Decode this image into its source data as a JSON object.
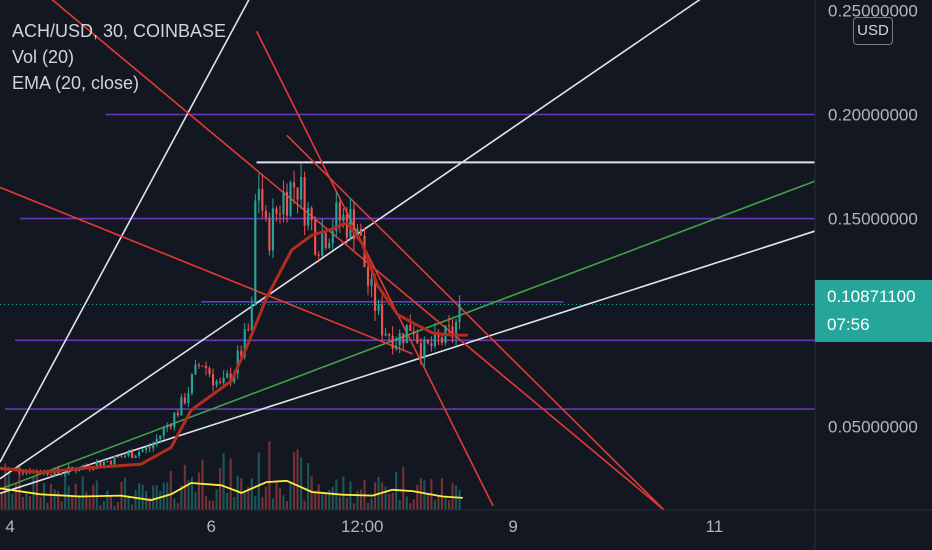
{
  "legend": {
    "symbol": "ACH/USD, 30, COINBASE",
    "volume": "Vol (20)",
    "ema": "EMA (20, close)"
  },
  "currency": "USD",
  "last_price": {
    "value": "0.10871100",
    "countdown": "07:56"
  },
  "colors": {
    "background": "#131722",
    "candle_up": "#26a69a",
    "candle_down": "#ef5350",
    "ema": "#b22d1e",
    "volume_ma": "#ffeb3b",
    "trendline_red": "#e53935",
    "trendline_white": "#e0e3eb",
    "trendline_green": "#43a047",
    "horizontal_purple": "#673ab7",
    "price_tag": "#26a69a"
  },
  "chart_data": {
    "type": "candlestick",
    "y_axis": {
      "range": [
        0.01,
        0.255
      ],
      "ticks": [
        {
          "value": 0.25,
          "label": "0.25000000"
        },
        {
          "value": 0.2,
          "label": "0.20000000"
        },
        {
          "value": 0.15,
          "label": "0.15000000"
        },
        {
          "value": 0.05,
          "label": "0.05000000"
        }
      ]
    },
    "x_axis": {
      "range": [
        3.9,
        12.0
      ],
      "ticks": [
        {
          "value": 4.0,
          "label": "4"
        },
        {
          "value": 6.0,
          "label": "6"
        },
        {
          "value": 7.5,
          "label": "12:00"
        },
        {
          "value": 9.0,
          "label": "9"
        },
        {
          "value": 11.0,
          "label": "11"
        }
      ]
    },
    "price_path": [
      [
        3.9,
        0.03
      ],
      [
        4.5,
        0.028
      ],
      [
        5.0,
        0.034
      ],
      [
        5.4,
        0.04
      ],
      [
        5.7,
        0.06
      ],
      [
        5.9,
        0.082
      ],
      [
        6.1,
        0.068
      ],
      [
        6.25,
        0.08
      ],
      [
        6.4,
        0.1
      ],
      [
        6.45,
        0.175
      ],
      [
        6.55,
        0.14
      ],
      [
        6.7,
        0.16
      ],
      [
        6.85,
        0.168
      ],
      [
        7.05,
        0.14
      ],
      [
        7.25,
        0.15
      ],
      [
        7.45,
        0.148
      ],
      [
        7.55,
        0.12
      ],
      [
        7.7,
        0.098
      ],
      [
        7.85,
        0.092
      ],
      [
        8.0,
        0.1
      ],
      [
        8.1,
        0.086
      ],
      [
        8.3,
        0.092
      ],
      [
        8.4,
        0.095
      ],
      [
        8.5,
        0.1087
      ]
    ],
    "ema_path": [
      [
        3.9,
        0.03
      ],
      [
        4.3,
        0.028
      ],
      [
        4.7,
        0.03
      ],
      [
        5.3,
        0.032
      ],
      [
        5.6,
        0.04
      ],
      [
        5.8,
        0.058
      ],
      [
        6.0,
        0.065
      ],
      [
        6.2,
        0.072
      ],
      [
        6.35,
        0.088
      ],
      [
        6.55,
        0.112
      ],
      [
        6.8,
        0.135
      ],
      [
        7.0,
        0.142
      ],
      [
        7.2,
        0.145
      ],
      [
        7.35,
        0.148
      ],
      [
        7.5,
        0.138
      ],
      [
        7.65,
        0.118
      ],
      [
        7.85,
        0.104
      ],
      [
        8.0,
        0.1
      ],
      [
        8.2,
        0.095
      ],
      [
        8.4,
        0.094
      ],
      [
        8.55,
        0.094
      ]
    ],
    "volume_ma_path": [
      [
        3.9,
        0.48
      ],
      [
        4.3,
        0.35
      ],
      [
        4.7,
        0.3
      ],
      [
        5.1,
        0.32
      ],
      [
        5.4,
        0.22
      ],
      [
        5.6,
        0.35
      ],
      [
        5.8,
        0.6
      ],
      [
        6.1,
        0.55
      ],
      [
        6.3,
        0.38
      ],
      [
        6.55,
        0.62
      ],
      [
        6.75,
        0.65
      ],
      [
        7.0,
        0.4
      ],
      [
        7.3,
        0.34
      ],
      [
        7.6,
        0.32
      ],
      [
        7.8,
        0.45
      ],
      [
        8.0,
        0.42
      ],
      [
        8.3,
        0.3
      ],
      [
        8.5,
        0.27
      ]
    ],
    "last_price": 0.108711,
    "horizontal_lines": [
      {
        "price": 0.2,
        "x_from": 4.95,
        "color": "purple"
      },
      {
        "price": 0.177,
        "x_from": 6.45,
        "color": "white"
      },
      {
        "price": 0.15,
        "x_from": 4.1,
        "color": "purple"
      },
      {
        "price": 0.11,
        "x_from": 5.9,
        "x_to": 9.5,
        "color": "purple"
      },
      {
        "price": 0.0915,
        "x_from": 4.05,
        "color": "purple"
      },
      {
        "price": 0.0585,
        "x_from": 3.95,
        "color": "purple"
      }
    ],
    "trend_lines": [
      {
        "from": [
          3.9,
          0.033
        ],
        "to": [
          6.45,
          0.262
        ],
        "color": "white"
      },
      {
        "from": [
          3.9,
          0.025
        ],
        "to": [
          11.0,
          0.26
        ],
        "color": "white"
      },
      {
        "from": [
          3.9,
          0.018
        ],
        "to": [
          12.0,
          0.144
        ],
        "color": "white"
      },
      {
        "from": [
          3.9,
          0.02
        ],
        "to": [
          12.0,
          0.168
        ],
        "color": "green"
      },
      {
        "from": [
          3.9,
          0.165
        ],
        "to": [
          8.0,
          0.085
        ],
        "color": "red"
      },
      {
        "from": [
          4.1,
          0.268
        ],
        "to": [
          10.5,
          0.01
        ],
        "color": "red"
      },
      {
        "from": [
          6.45,
          0.24
        ],
        "to": [
          8.8,
          0.012
        ],
        "color": "red"
      },
      {
        "from": [
          6.75,
          0.19
        ],
        "to": [
          10.5,
          0.01
        ],
        "color": "red"
      }
    ],
    "grid": false,
    "legend_position": "top-left"
  }
}
